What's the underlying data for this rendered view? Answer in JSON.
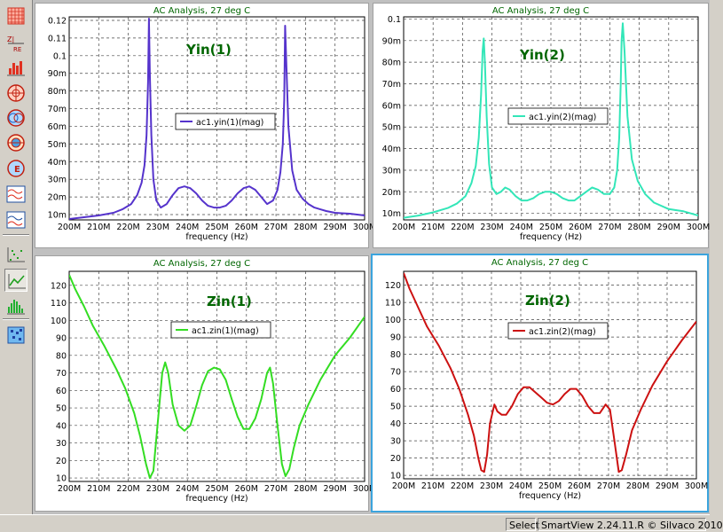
{
  "toolbar": {
    "items": [
      {
        "icon": "grid-icon"
      },
      {
        "icon": "impedance-chart-icon"
      },
      {
        "icon": "bar-chart-icon"
      },
      {
        "icon": "smith-chart-icon"
      },
      {
        "icon": "smith-admittance-icon"
      },
      {
        "icon": "polar-chart-icon"
      },
      {
        "icon": "polar-impedance-icon"
      },
      {
        "icon": "waveform-icon"
      },
      {
        "icon": "dual-waveform-icon"
      },
      {
        "icon": "scatter-plot-icon"
      },
      {
        "icon": "line-plot-icon"
      },
      {
        "icon": "histogram-icon"
      },
      {
        "icon": "map-icon"
      }
    ]
  },
  "status": {
    "mode": "Select",
    "version": "SmartView 2.24.11.R © Silvaco 2010"
  },
  "colors": {
    "yin1": "#5533cc",
    "yin2": "#33e6b8",
    "zin1": "#33dd22",
    "zin2": "#cc1111",
    "title": "#006600",
    "annotation": "#006600",
    "selection": "#3ba4dd"
  },
  "chart_data": [
    {
      "type": "line",
      "title": "AC Analysis, 27 deg C",
      "xlabel": "frequency (Hz)",
      "ylabel": "",
      "annotation": "Yin(1)",
      "xlim": [
        200,
        300
      ],
      "ylim": [
        0.007,
        0.122
      ],
      "x_ticks": [
        200,
        210,
        220,
        230,
        240,
        250,
        260,
        270,
        280,
        290,
        300
      ],
      "x_tick_labels": [
        "200M",
        "210M",
        "220M",
        "230M",
        "240M",
        "250M",
        "260M",
        "270M",
        "280M",
        "290M",
        "300M"
      ],
      "y_ticks": [
        0.01,
        0.02,
        0.03,
        0.04,
        0.05,
        0.06,
        0.07,
        0.08,
        0.09,
        0.1,
        0.11,
        0.12
      ],
      "y_tick_labels": [
        "10m",
        "20m",
        "30m",
        "40m",
        "50m",
        "60m",
        "70m",
        "80m",
        "90m",
        "0.1",
        "0.11",
        "0.12"
      ],
      "grid": true,
      "legend_position": "center",
      "series": [
        {
          "name": "ac1.yin(1)(mag)",
          "color_key": "yin1",
          "x": [
            200,
            205,
            210,
            215,
            218,
            221,
            223,
            224.5,
            225.5,
            226.2,
            226.7,
            227,
            227.3,
            227.8,
            228.5,
            229.5,
            231,
            233,
            235,
            237,
            239,
            241,
            243,
            245,
            247,
            249,
            251,
            253,
            255,
            257,
            259,
            261,
            263,
            265,
            267,
            269,
            270.5,
            271.5,
            272.3,
            272.8,
            273.1,
            273.5,
            274.2,
            275.5,
            277,
            279,
            281,
            283,
            285,
            287,
            290,
            295,
            300
          ],
          "y": [
            0.0075,
            0.0085,
            0.0095,
            0.011,
            0.013,
            0.016,
            0.021,
            0.028,
            0.038,
            0.055,
            0.085,
            0.121,
            0.09,
            0.055,
            0.03,
            0.018,
            0.014,
            0.016,
            0.021,
            0.025,
            0.026,
            0.025,
            0.022,
            0.018,
            0.015,
            0.014,
            0.014,
            0.015,
            0.018,
            0.022,
            0.025,
            0.026,
            0.024,
            0.02,
            0.016,
            0.018,
            0.024,
            0.034,
            0.05,
            0.075,
            0.117,
            0.095,
            0.06,
            0.035,
            0.024,
            0.019,
            0.016,
            0.014,
            0.013,
            0.012,
            0.011,
            0.0105,
            0.0095
          ]
        }
      ]
    },
    {
      "type": "line",
      "title": "AC Analysis, 27 deg C",
      "xlabel": "frequency (Hz)",
      "ylabel": "",
      "annotation": "Yin(2)",
      "xlim": [
        200,
        300
      ],
      "ylim": [
        0.007,
        0.101
      ],
      "x_ticks": [
        200,
        210,
        220,
        230,
        240,
        250,
        260,
        270,
        280,
        290,
        300
      ],
      "x_tick_labels": [
        "200M",
        "210M",
        "220M",
        "230M",
        "240M",
        "250M",
        "260M",
        "270M",
        "280M",
        "290M",
        "300M"
      ],
      "y_ticks": [
        0.01,
        0.02,
        0.03,
        0.04,
        0.05,
        0.06,
        0.07,
        0.08,
        0.09,
        0.1
      ],
      "y_tick_labels": [
        "10m",
        "20m",
        "30m",
        "40m",
        "50m",
        "60m",
        "70m",
        "80m",
        "90m",
        "0.1"
      ],
      "grid": true,
      "legend_position": "center",
      "series": [
        {
          "name": "ac1.yin(2)(mag)",
          "color_key": "yin2",
          "x": [
            200,
            205,
            210,
            215,
            218,
            221,
            223,
            224.5,
            225.5,
            226.3,
            226.8,
            227.2,
            227.6,
            228.2,
            229,
            230,
            231.5,
            233,
            234.5,
            236,
            238,
            240,
            242,
            244,
            246,
            248,
            250,
            252,
            254,
            256,
            258,
            260,
            262,
            264,
            266,
            268,
            270,
            271.5,
            272.5,
            273.2,
            273.7,
            274,
            274.4,
            275,
            276,
            277.5,
            279.5,
            282,
            285,
            290,
            295,
            300
          ],
          "y": [
            0.008,
            0.009,
            0.0105,
            0.0125,
            0.0145,
            0.018,
            0.024,
            0.032,
            0.045,
            0.065,
            0.085,
            0.091,
            0.08,
            0.055,
            0.033,
            0.022,
            0.019,
            0.02,
            0.022,
            0.021,
            0.018,
            0.016,
            0.016,
            0.017,
            0.019,
            0.02,
            0.02,
            0.019,
            0.017,
            0.016,
            0.016,
            0.018,
            0.02,
            0.022,
            0.021,
            0.019,
            0.019,
            0.022,
            0.03,
            0.045,
            0.07,
            0.09,
            0.098,
            0.085,
            0.055,
            0.035,
            0.025,
            0.019,
            0.015,
            0.012,
            0.011,
            0.009
          ]
        }
      ]
    },
    {
      "type": "line",
      "title": "AC Analysis, 27 deg C",
      "xlabel": "frequency (Hz)",
      "ylabel": "",
      "annotation": "Zin(1)",
      "xlim": [
        200,
        300
      ],
      "ylim": [
        8,
        128
      ],
      "x_ticks": [
        200,
        210,
        220,
        230,
        240,
        250,
        260,
        270,
        280,
        290,
        300
      ],
      "x_tick_labels": [
        "200M",
        "210M",
        "220M",
        "230M",
        "240M",
        "250M",
        "260M",
        "270M",
        "280M",
        "290M",
        "300M"
      ],
      "y_ticks": [
        10,
        20,
        30,
        40,
        50,
        60,
        70,
        80,
        90,
        100,
        110,
        120
      ],
      "y_tick_labels": [
        "10",
        "20",
        "30",
        "40",
        "50",
        "60",
        "70",
        "80",
        "90",
        "100",
        "110",
        "120"
      ],
      "grid": true,
      "legend_position": "center",
      "series": [
        {
          "name": "ac1.zin(1)(mag)",
          "color_key": "zin1",
          "x": [
            200,
            202,
            205,
            208,
            212,
            216,
            219,
            222,
            224,
            226,
            227.3,
            228.5,
            230,
            231.5,
            232.5,
            233.5,
            235,
            237,
            239,
            241,
            243,
            245,
            247,
            249,
            251,
            253,
            255,
            257,
            259,
            261,
            263,
            265,
            267,
            268,
            269,
            270.5,
            272,
            273.2,
            274.5,
            276,
            278,
            281,
            285,
            290,
            295,
            300
          ],
          "y": [
            126,
            118,
            108,
            97,
            85,
            72,
            61,
            47,
            34,
            18,
            10,
            14,
            42,
            70,
            76,
            70,
            52,
            40,
            37,
            40,
            51,
            63,
            71,
            73,
            72,
            66,
            55,
            45,
            38,
            38,
            44,
            55,
            70,
            73,
            64,
            40,
            18,
            11,
            15,
            27,
            40,
            52,
            66,
            80,
            90,
            102
          ]
        }
      ]
    },
    {
      "type": "line",
      "title": "AC Analysis, 27 deg C",
      "xlabel": "frequency (Hz)",
      "ylabel": "",
      "annotation": "Zin(2)",
      "xlim": [
        200,
        300
      ],
      "ylim": [
        8,
        128
      ],
      "x_ticks": [
        200,
        210,
        220,
        230,
        240,
        250,
        260,
        270,
        280,
        290,
        300
      ],
      "x_tick_labels": [
        "200M",
        "210M",
        "220M",
        "230M",
        "240M",
        "250M",
        "260M",
        "270M",
        "280M",
        "290M",
        "300M"
      ],
      "y_ticks": [
        10,
        20,
        30,
        40,
        50,
        60,
        70,
        80,
        90,
        100,
        110,
        120
      ],
      "y_tick_labels": [
        "10",
        "20",
        "30",
        "40",
        "50",
        "60",
        "70",
        "80",
        "90",
        "100",
        "110",
        "120"
      ],
      "grid": true,
      "legend_position": "center",
      "series": [
        {
          "name": "ac1.zin(2)(mag)",
          "color_key": "zin2",
          "x": [
            200,
            202,
            205,
            208,
            212,
            216,
            219,
            222,
            224,
            225.5,
            226.5,
            227.5,
            228.5,
            229.5,
            231,
            232,
            233.5,
            235,
            237,
            239,
            241,
            243,
            245,
            247,
            249,
            251,
            253,
            255,
            257,
            259,
            261,
            263,
            265,
            267,
            269,
            270.5,
            272,
            273.5,
            274.5,
            276,
            278,
            281,
            285,
            290,
            295,
            300
          ],
          "y": [
            127,
            118,
            107,
            96,
            85,
            72,
            60,
            45,
            33,
            20,
            13,
            12,
            22,
            40,
            51,
            47,
            45,
            45,
            50,
            57,
            61,
            61,
            58,
            55,
            52,
            51,
            53,
            57,
            60,
            60,
            56,
            50,
            46,
            46,
            51,
            48,
            30,
            12,
            13,
            22,
            36,
            48,
            62,
            76,
            88,
            99
          ]
        }
      ]
    }
  ]
}
